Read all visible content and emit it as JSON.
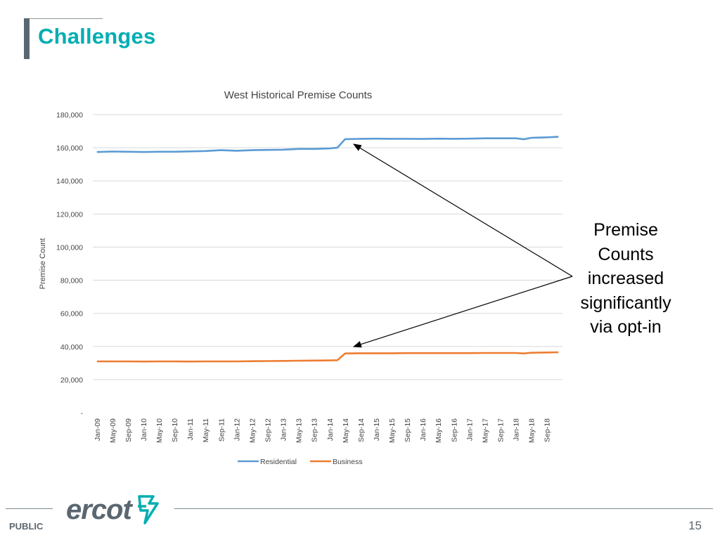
{
  "slide": {
    "title": "Challenges",
    "annotation_lines": [
      "Premise",
      "Counts",
      "increased",
      "significantly",
      "via opt-in"
    ],
    "footer": {
      "classification": "PUBLIC",
      "page_number": "15",
      "logo_text": "ercot"
    }
  },
  "colors": {
    "title": "#00aeb3",
    "residential": "#5b9bd5",
    "business": "#ed7d31",
    "gridline": "#d9d9d9",
    "footer_gray": "#5b6770"
  },
  "chart_data": {
    "type": "line",
    "title": "West Historical Premise Counts",
    "xlabel": "",
    "ylabel": "Premise Count",
    "ylim": [
      0,
      180000
    ],
    "y_ticks": [
      0,
      20000,
      40000,
      60000,
      80000,
      100000,
      120000,
      140000,
      160000,
      180000
    ],
    "y_tick_labels": [
      "-",
      "20,000",
      "40,000",
      "60,000",
      "80,000",
      "100,000",
      "120,000",
      "140,000",
      "160,000",
      "180,000"
    ],
    "x_tick_labels": [
      "Jan-09",
      "May-09",
      "Sep-09",
      "Jan-10",
      "May-10",
      "Sep-10",
      "Jan-11",
      "May-11",
      "Sep-11",
      "Jan-12",
      "May-12",
      "Sep-12",
      "Jan-13",
      "May-13",
      "Sep-13",
      "Jan-14",
      "May-14",
      "Sep-14",
      "Jan-15",
      "May-15",
      "Sep-15",
      "Jan-16",
      "May-16",
      "Sep-16",
      "Jan-17",
      "May-17",
      "Sep-17",
      "Jan-18",
      "May-18",
      "Sep-18"
    ],
    "grid": true,
    "legend": "bottom",
    "series": [
      {
        "name": "Residential",
        "color": "#5b9bd5",
        "x": [
          "Jan-09",
          "May-09",
          "Sep-09",
          "Jan-10",
          "May-10",
          "Sep-10",
          "Jan-11",
          "May-11",
          "Sep-11",
          "Jan-12",
          "May-12",
          "Sep-12",
          "Jan-13",
          "May-13",
          "Sep-13",
          "Jan-14",
          "Mar-14",
          "May-14",
          "Sep-14",
          "Jan-15",
          "May-15",
          "Sep-15",
          "Jan-16",
          "May-16",
          "Sep-16",
          "Jan-17",
          "May-17",
          "Sep-17",
          "Jan-18",
          "Mar-18",
          "May-18",
          "Sep-18",
          "Dec-18"
        ],
        "values": [
          157400,
          157700,
          157600,
          157400,
          157600,
          157600,
          157800,
          158000,
          158500,
          158200,
          158500,
          158700,
          158800,
          159300,
          159300,
          159600,
          160000,
          165200,
          165400,
          165500,
          165400,
          165400,
          165300,
          165500,
          165400,
          165500,
          165700,
          165700,
          165700,
          165100,
          166000,
          166300,
          166600
        ]
      },
      {
        "name": "Business",
        "color": "#ed7d31",
        "x": [
          "Jan-09",
          "May-09",
          "Sep-09",
          "Jan-10",
          "May-10",
          "Sep-10",
          "Jan-11",
          "May-11",
          "Sep-11",
          "Jan-12",
          "May-12",
          "Sep-12",
          "Jan-13",
          "May-13",
          "Sep-13",
          "Jan-14",
          "Mar-14",
          "May-14",
          "Sep-14",
          "Jan-15",
          "May-15",
          "Sep-15",
          "Jan-16",
          "May-16",
          "Sep-16",
          "Jan-17",
          "May-17",
          "Sep-17",
          "Jan-18",
          "Mar-18",
          "May-18",
          "Sep-18",
          "Dec-18"
        ],
        "values": [
          31000,
          31000,
          31000,
          30900,
          31000,
          31000,
          30900,
          31000,
          31000,
          31000,
          31100,
          31200,
          31300,
          31400,
          31500,
          31600,
          31700,
          35800,
          35900,
          35900,
          35900,
          36000,
          36000,
          36000,
          36000,
          36000,
          36100,
          36100,
          36100,
          35800,
          36200,
          36400,
          36500
        ]
      }
    ]
  }
}
